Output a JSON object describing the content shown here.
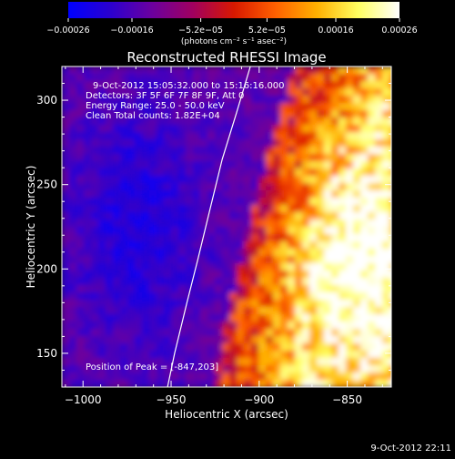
{
  "chart_data": {
    "type": "heatmap",
    "title": "Reconstructed RHESSI Image",
    "xlabel": "Heliocentric X (arcsec)",
    "ylabel": "Heliocentric Y (arcsec)",
    "xlim": [
      -1012,
      -825
    ],
    "ylim": [
      130,
      320
    ],
    "x_ticks": [
      -1000,
      -950,
      -900,
      -850
    ],
    "x_tick_labels": [
      "−1000",
      "−950",
      "−900",
      "−850"
    ],
    "y_ticks": [
      150,
      200,
      250,
      300
    ],
    "y_tick_labels": [
      "150",
      "200",
      "250",
      "300"
    ],
    "colorbar": {
      "ticks": [
        -0.00026,
        -0.00016,
        -5.2e-05,
        5.2e-05,
        0.00016,
        0.00026
      ],
      "tick_labels": [
        "−0.00026",
        "−0.00016",
        "−5.2e−05",
        "5.2e−05",
        "0.00016",
        "0.00026"
      ],
      "units_label": "(photons cm⁻² s⁻¹ asec⁻²)",
      "colors": [
        "#0000ff",
        "#2a00d0",
        "#6a00a0",
        "#a00060",
        "#d81800",
        "#ff6000",
        "#ffb000",
        "#ffff60",
        "#ffffff"
      ]
    },
    "info_lines": [
      "9-Oct-2012 15:05:32.000 to 15:16:16.000",
      "Detectors: 3F 5F 6F 7F 8F 9F, Att 0",
      "Energy Range: 25.0 - 50.0 keV",
      "Clean    Total counts: 1.82E+04"
    ],
    "peak_label": "Position of Peak = [-847,203]",
    "limb_points": [
      [
        -952,
        130
      ],
      [
        -948,
        150
      ],
      [
        -941,
        180
      ],
      [
        -935,
        205
      ],
      [
        -928,
        235
      ],
      [
        -921,
        265
      ],
      [
        -913,
        292
      ],
      [
        -905,
        320
      ]
    ],
    "timestamp": "9-Oct-2012 22:11"
  }
}
